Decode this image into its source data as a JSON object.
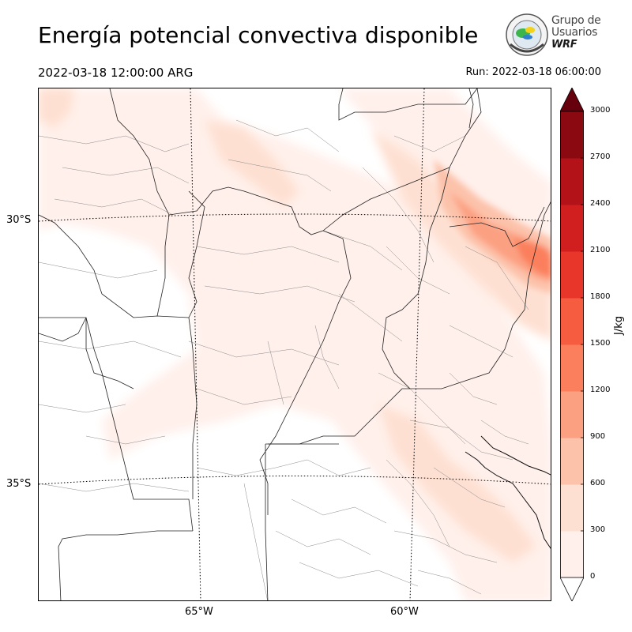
{
  "header": {
    "title": "Energía potencial convectiva disponible",
    "valid_time": "2022-03-18 12:00:00 ARG",
    "run_time": "Run: 2022-03-18 06:00:00"
  },
  "logo": {
    "line1": "Grupo de",
    "line2": "Usuarios",
    "line3": "WRF"
  },
  "map": {
    "lat_labels": [
      "30°S",
      "35°S"
    ],
    "lon_labels": [
      "65°W",
      "60°W"
    ]
  },
  "colorbar": {
    "unit": "J/kg",
    "ticks": [
      "0",
      "300",
      "600",
      "900",
      "1200",
      "1500",
      "1800",
      "2100",
      "2400",
      "2700",
      "3000"
    ],
    "colors": [
      "#fff0eb",
      "#fee0d2",
      "#fcc2aa",
      "#fca082",
      "#fb7f5c",
      "#f65c40",
      "#e9362a",
      "#d11e1f",
      "#b21218",
      "#8b0a12"
    ],
    "over_color": "#67000d",
    "under_color": "#ffffff"
  }
}
